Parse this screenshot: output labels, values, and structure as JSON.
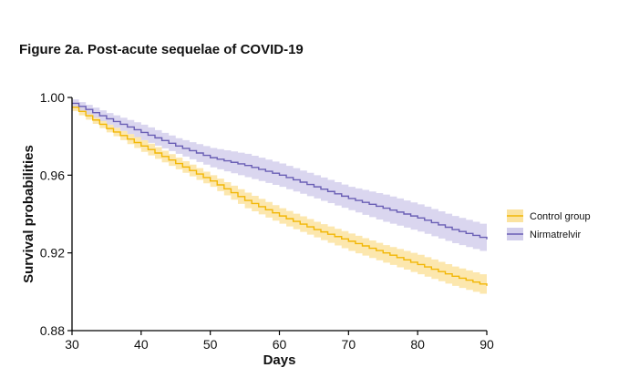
{
  "page_title": "Figure 2a. Post-acute sequelae of COVID-19",
  "chart_data": {
    "type": "line",
    "title": "Figure 2a. Post-acute sequelae of COVID-19",
    "xlabel": "Days",
    "ylabel": "Survival probabilities",
    "xlim": [
      30,
      90
    ],
    "ylim": [
      0.88,
      1.0
    ],
    "xticks": [
      30,
      40,
      50,
      60,
      70,
      80,
      90
    ],
    "xtick_labels": [
      "30",
      "40",
      "50",
      "60",
      "70",
      "80",
      "90"
    ],
    "yticks": [
      0.88,
      0.92,
      0.96,
      1.0
    ],
    "ytick_labels": [
      "0.88",
      "0.92",
      "0.96",
      "1.00"
    ],
    "grid": false,
    "legend_position": "right",
    "series": [
      {
        "name": "Control group",
        "color": "#f2b705",
        "band_color": "#fbe3a0",
        "x": [
          30,
          35,
          40,
          45,
          50,
          55,
          60,
          65,
          70,
          75,
          80,
          85,
          90
        ],
        "y": [
          0.995,
          0.984,
          0.975,
          0.966,
          0.957,
          0.947,
          0.939,
          0.932,
          0.926,
          0.92,
          0.914,
          0.908,
          0.903
        ],
        "lower": [
          0.993,
          0.982,
          0.972,
          0.963,
          0.954,
          0.943,
          0.935,
          0.928,
          0.921,
          0.915,
          0.909,
          0.903,
          0.898
        ],
        "upper": [
          0.997,
          0.986,
          0.978,
          0.969,
          0.96,
          0.951,
          0.943,
          0.936,
          0.93,
          0.924,
          0.919,
          0.913,
          0.908
        ]
      },
      {
        "name": "Nirmatrelvir",
        "color": "#6a5fb5",
        "band_color": "#d3cfec",
        "x": [
          30,
          35,
          40,
          45,
          50,
          55,
          60,
          65,
          70,
          75,
          80,
          85,
          90
        ],
        "y": [
          0.997,
          0.989,
          0.982,
          0.975,
          0.969,
          0.965,
          0.96,
          0.954,
          0.948,
          0.943,
          0.938,
          0.932,
          0.927
        ],
        "lower": [
          0.995,
          0.986,
          0.978,
          0.971,
          0.964,
          0.959,
          0.954,
          0.948,
          0.942,
          0.936,
          0.931,
          0.925,
          0.92
        ],
        "upper": [
          0.999,
          0.992,
          0.986,
          0.979,
          0.974,
          0.971,
          0.966,
          0.96,
          0.954,
          0.95,
          0.945,
          0.939,
          0.934
        ]
      }
    ]
  }
}
